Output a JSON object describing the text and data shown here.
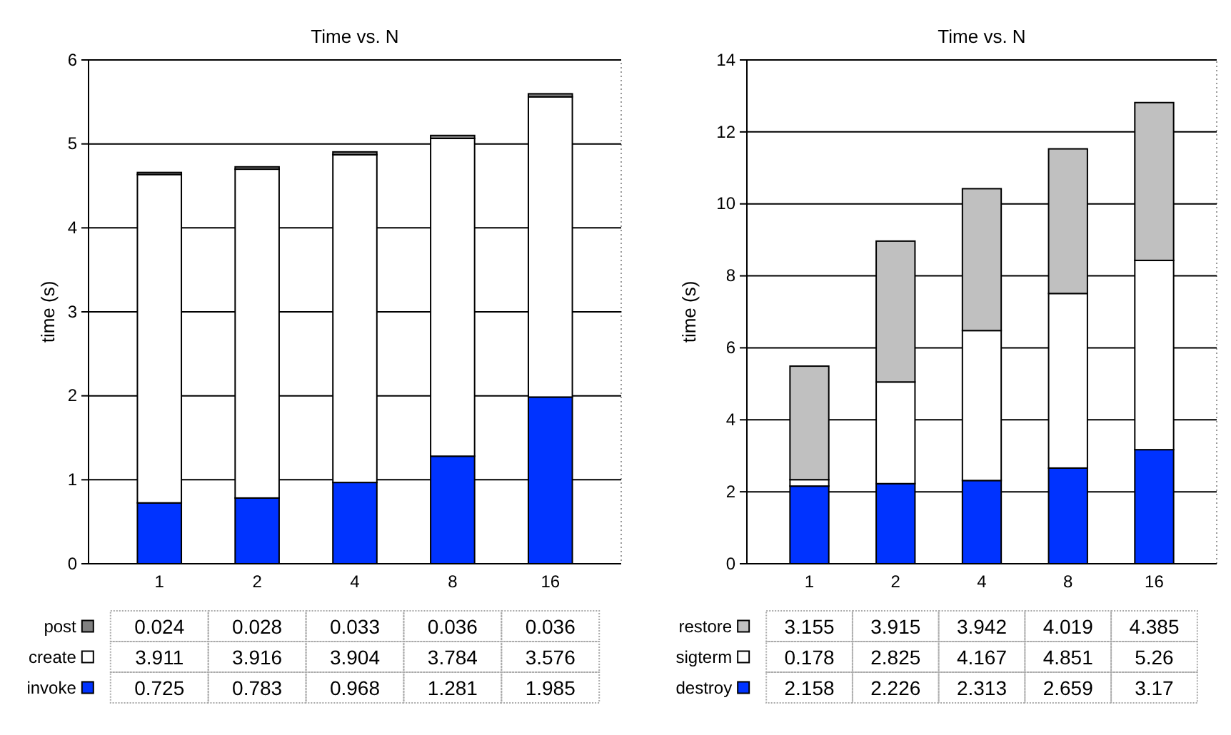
{
  "chart_data": [
    {
      "type": "bar",
      "title": "Time vs. N",
      "ylabel": "time (s)",
      "categories": [
        "1",
        "2",
        "4",
        "8",
        "16"
      ],
      "stacked": true,
      "ylim": [
        0,
        6
      ],
      "yticks": [
        0,
        1,
        2,
        3,
        4,
        5,
        6
      ],
      "grid": "y",
      "legend": "bottom",
      "data_labels": true,
      "series": [
        {
          "name": "invoke",
          "color": "#0033ff",
          "values": [
            0.725,
            0.783,
            0.968,
            1.281,
            1.985
          ]
        },
        {
          "name": "create",
          "color": "#ffffff",
          "values": [
            3.911,
            3.916,
            3.904,
            3.784,
            3.576
          ]
        },
        {
          "name": "post",
          "color": "#808080",
          "values": [
            0.024,
            0.028,
            0.033,
            0.036,
            0.036
          ]
        }
      ]
    },
    {
      "type": "bar",
      "title": "Time vs. N",
      "ylabel": "time (s)",
      "categories": [
        "1",
        "2",
        "4",
        "8",
        "16"
      ],
      "stacked": true,
      "ylim": [
        0,
        14
      ],
      "yticks": [
        0,
        2,
        4,
        6,
        8,
        10,
        12,
        14
      ],
      "grid": "y",
      "legend": "bottom",
      "data_labels": true,
      "series": [
        {
          "name": "destroy",
          "color": "#0033ff",
          "values": [
            2.158,
            2.226,
            2.313,
            2.659,
            3.17
          ]
        },
        {
          "name": "sigterm",
          "color": "#ffffff",
          "values": [
            0.178,
            2.825,
            4.167,
            4.851,
            5.26
          ]
        },
        {
          "name": "restore",
          "color": "#c0c0c0",
          "values": [
            3.155,
            3.915,
            3.942,
            4.019,
            4.385
          ]
        }
      ]
    }
  ]
}
